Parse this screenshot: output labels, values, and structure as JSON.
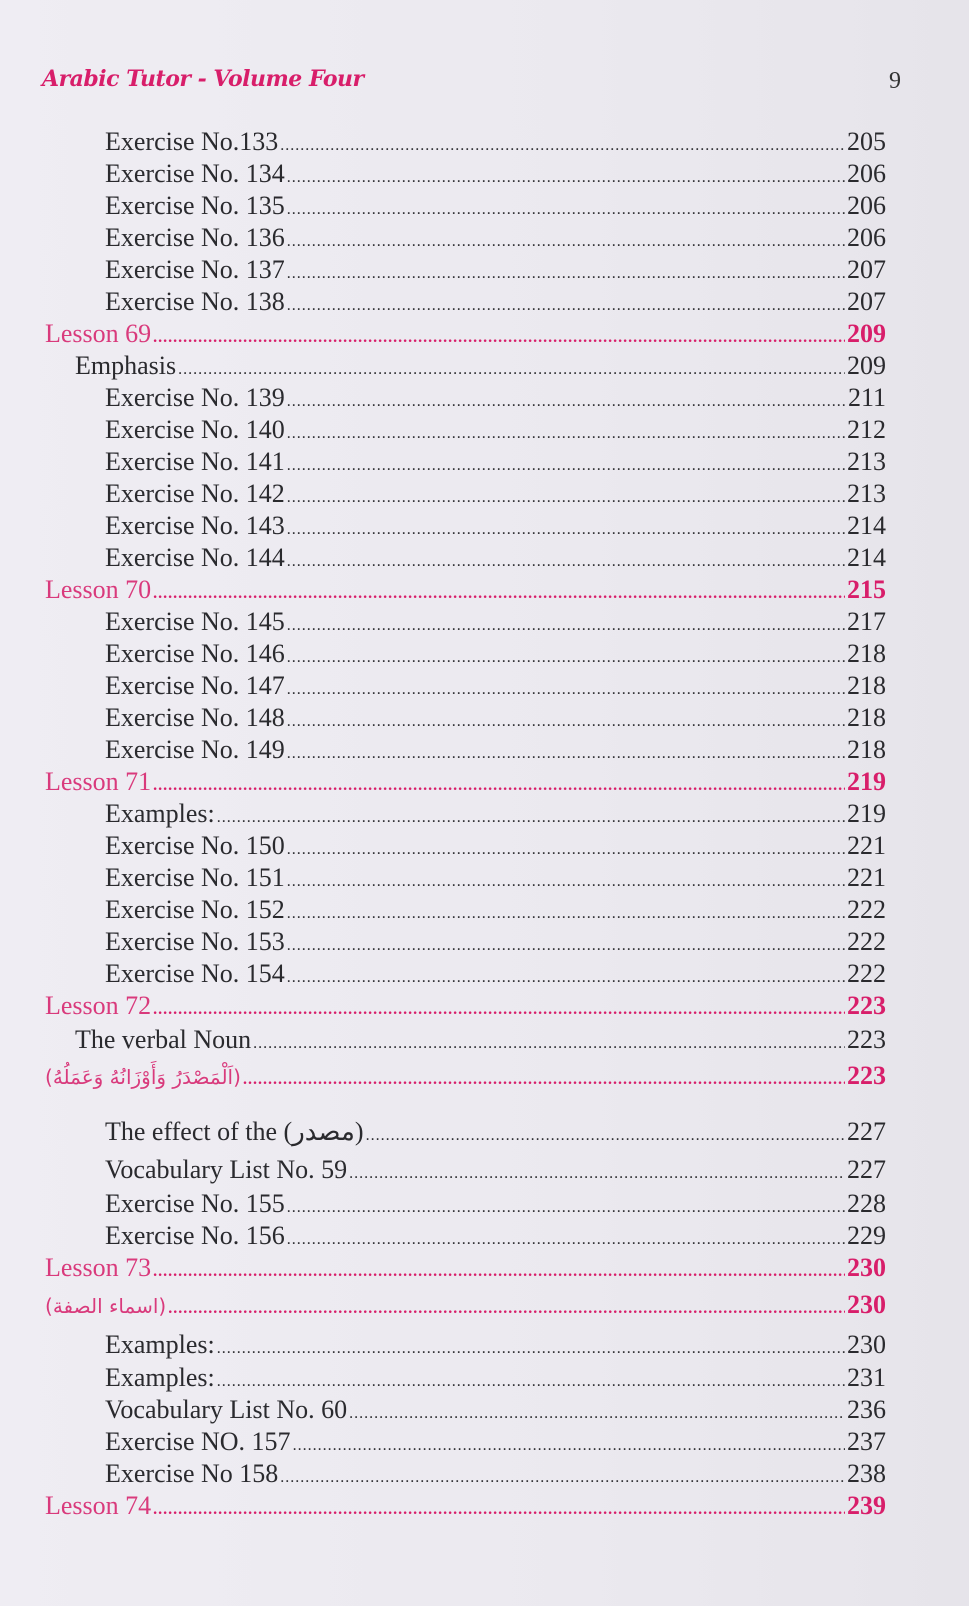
{
  "header": {
    "title": "Arabic Tutor - Volume Four",
    "page_number": "9"
  },
  "colors": {
    "lesson": "#d81e6a",
    "text": "#2a2a2e",
    "paper": "#efedf3"
  },
  "entries": [
    {
      "level": "item",
      "label": "Exercise No.133",
      "page": "205"
    },
    {
      "level": "item",
      "label": "Exercise No. 134",
      "page": "206"
    },
    {
      "level": "item",
      "label": "Exercise No. 135",
      "page": "206"
    },
    {
      "level": "item",
      "label": "Exercise No. 136",
      "page": "206"
    },
    {
      "level": "item",
      "label": "Exercise No. 137",
      "page": "207"
    },
    {
      "level": "item",
      "label": "Exercise No. 138",
      "page": "207"
    },
    {
      "level": "lesson",
      "label": "Lesson 69",
      "page": "209"
    },
    {
      "level": "topic",
      "label": "Emphasis",
      "page": "209"
    },
    {
      "level": "item",
      "label": "Exercise No. 139",
      "page": "211"
    },
    {
      "level": "item",
      "label": "Exercise No. 140",
      "page": "212"
    },
    {
      "level": "item",
      "label": "Exercise No. 141",
      "page": "213"
    },
    {
      "level": "item",
      "label": "Exercise No. 142",
      "page": "213"
    },
    {
      "level": "item",
      "label": "Exercise No. 143",
      "page": "214"
    },
    {
      "level": "item",
      "label": "Exercise No. 144",
      "page": "214"
    },
    {
      "level": "lesson",
      "label": "Lesson 70",
      "page": "215"
    },
    {
      "level": "item",
      "label": "Exercise No. 145",
      "page": "217"
    },
    {
      "level": "item",
      "label": "Exercise No. 146",
      "page": "218"
    },
    {
      "level": "item",
      "label": "Exercise No. 147",
      "page": "218"
    },
    {
      "level": "item",
      "label": "Exercise No. 148",
      "page": "218"
    },
    {
      "level": "item",
      "label": "Exercise No. 149",
      "page": "218"
    },
    {
      "level": "lesson",
      "label": "Lesson 71",
      "page": "219"
    },
    {
      "level": "item",
      "label": "Examples:",
      "page": "219"
    },
    {
      "level": "item",
      "label": "Exercise No. 150",
      "page": "221"
    },
    {
      "level": "item",
      "label": "Exercise No. 151",
      "page": "221"
    },
    {
      "level": "item",
      "label": "Exercise No. 152",
      "page": "222"
    },
    {
      "level": "item",
      "label": "Exercise No. 153",
      "page": "222"
    },
    {
      "level": "item",
      "label": "Exercise No. 154",
      "page": "222"
    },
    {
      "level": "lesson",
      "label": "Lesson 72",
      "page": "223"
    },
    {
      "level": "topic",
      "label": "The verbal Noun",
      "page": "223"
    },
    {
      "level": "lesson",
      "label": "(اَلْمَصْدَرُ وَأَوْزَانُهُ وَعَمَلُهُ)",
      "page": "223",
      "arabic": true
    },
    {
      "level": "item",
      "label": "The effect of the (مصدر)",
      "page": "227"
    },
    {
      "level": "item",
      "label": "Vocabulary List No. 59",
      "page": "227"
    },
    {
      "level": "item",
      "label": "Exercise No. 155",
      "page": "228"
    },
    {
      "level": "item",
      "label": "Exercise No. 156",
      "page": "229"
    },
    {
      "level": "lesson",
      "label": "Lesson 73",
      "page": "230"
    },
    {
      "level": "lesson",
      "label": "(اسماء الصفة)",
      "page": "230",
      "arabic": true
    },
    {
      "level": "item",
      "label": "Examples:",
      "page": "230"
    },
    {
      "level": "item",
      "label": "Examples:",
      "page": "231"
    },
    {
      "level": "item",
      "label": "Vocabulary List No. 60",
      "page": "236"
    },
    {
      "level": "item",
      "label": "Exercise NO. 157",
      "page": "237"
    },
    {
      "level": "item",
      "label": "Exercise No 158",
      "page": "238"
    },
    {
      "level": "lesson",
      "label": "Lesson 74",
      "page": "239"
    }
  ]
}
